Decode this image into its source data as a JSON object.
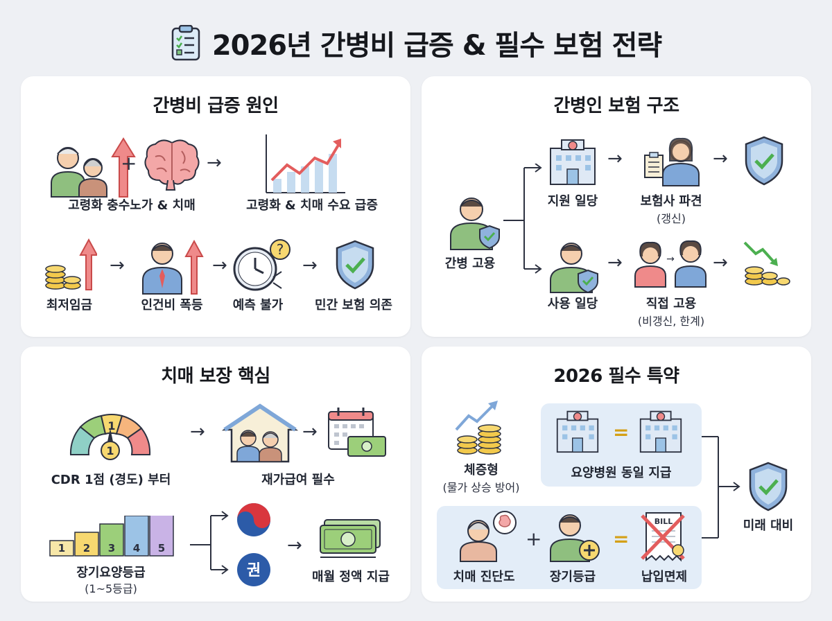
{
  "title": "2026년 간병비 급증 & 필수 보험 전략",
  "icons": {
    "title": "clipboard-checklist-icon",
    "shield": "shield-check-icon",
    "coins": "coin-stack-icon"
  },
  "colors": {
    "background": "#eef0f4",
    "panel": "#ffffff",
    "highlight_box": "#e3edf8",
    "arrow_red": "#e35d5d",
    "shield_blue": "#8fb2dc",
    "check_green": "#4caf50"
  },
  "panel1": {
    "title": "간병비 급증 원인",
    "aging_label": "고령화 충수노가 & 치매",
    "demand_label": "고령화 & 치매 수요 급증",
    "min_wage_label": "최저임금",
    "labor_cost_label": "인건비 폭등",
    "unpredictable_label": "예측 불가",
    "private_ins_label": "민간 보험 의존"
  },
  "panel2": {
    "title": "간병인 보험 구조",
    "hire_label": "간병 고용",
    "support_daily_label": "지원 일당",
    "dispatch_label": "보험사 파견",
    "dispatch_sub": "(갱신)",
    "use_daily_label": "사용 일당",
    "direct_hire_label": "직접 고용",
    "direct_hire_sub": "(비갱신, 한계)"
  },
  "panel3": {
    "title": "치매 보장 핵심",
    "gauge_top_number": "1",
    "gauge_needle_number": "1",
    "cdr_label": "CDR 1점 (경도) 부터",
    "home_care_label": "재가급여 필수",
    "grades": [
      "1",
      "2",
      "3",
      "4",
      "5"
    ],
    "grade_label": "장기요양등급",
    "grade_sub": "(1~5등급)",
    "gwon_text": "권",
    "monthly_label": "매월 정액 지급"
  },
  "panel4": {
    "title": "2026 필수 특약",
    "increase_label": "체증형",
    "increase_sub": "(물가 상승 방어)",
    "nursing_label": "요양병원 동일 지급",
    "dementia_label": "치매 진단도",
    "longterm_label": "장기등급",
    "waiver_label": "납입면제",
    "bill_text": "BILL",
    "future_label": "미래 대비"
  }
}
